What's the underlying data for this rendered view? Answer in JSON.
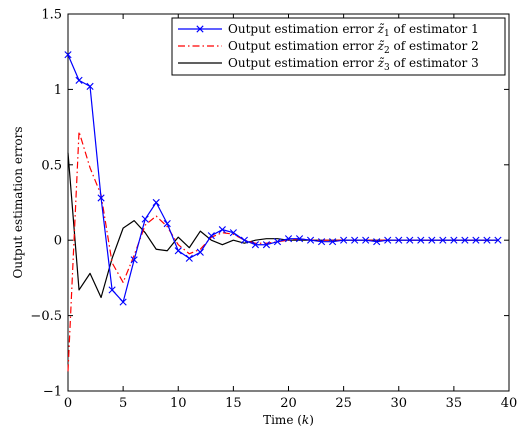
{
  "chart_data": {
    "type": "line",
    "title": "",
    "xlabel": "Time (k)",
    "ylabel": "Output estimation errors",
    "xlim": [
      0,
      40
    ],
    "ylim": [
      -1,
      1.5
    ],
    "xticks": [
      0,
      5,
      10,
      15,
      20,
      25,
      30,
      35,
      40
    ],
    "xtick_labels": [
      "0",
      "5",
      "10",
      "15",
      "20",
      "25",
      "30",
      "35",
      "40"
    ],
    "yticks": [
      -1,
      -0.5,
      0,
      0.5,
      1,
      1.5
    ],
    "ytick_labels": [
      "−1",
      "−0.5",
      "0",
      "0.5",
      "1",
      "1.5"
    ],
    "grid": false,
    "legend_position": "top-right",
    "x": [
      0,
      1,
      2,
      3,
      4,
      5,
      6,
      7,
      8,
      9,
      10,
      11,
      12,
      13,
      14,
      15,
      16,
      17,
      18,
      19,
      20,
      21,
      22,
      23,
      24,
      25,
      26,
      27,
      28,
      29,
      30,
      31,
      32,
      33,
      34,
      35,
      36,
      37,
      38,
      39
    ],
    "series": [
      {
        "name": "Output estimation error z̃₁ of estimator 1",
        "legend_prefix": "Output estimation error ",
        "legend_symbol": "z̃",
        "legend_sub": "1",
        "legend_suffix": " of estimator 1",
        "color": "#0000ff",
        "line_style": "solid",
        "marker": "x",
        "values": [
          1.23,
          1.06,
          1.02,
          0.28,
          -0.33,
          -0.41,
          -0.13,
          0.14,
          0.25,
          0.11,
          -0.07,
          -0.12,
          -0.08,
          0.03,
          0.07,
          0.05,
          0.0,
          -0.03,
          -0.03,
          -0.01,
          0.01,
          0.01,
          0.0,
          -0.01,
          -0.01,
          0.0,
          0.0,
          0.0,
          -0.01,
          0.0,
          0.0,
          0.0,
          0.0,
          0.0,
          0.0,
          0.0,
          0.0,
          0.0,
          0.0,
          0.0
        ]
      },
      {
        "name": "Output estimation error z̃₂ of estimator 2",
        "legend_prefix": "Output estimation error ",
        "legend_symbol": "z̃",
        "legend_sub": "2",
        "legend_suffix": " of estimator 2",
        "color": "#ff0000",
        "line_style": "dashdot",
        "marker": "none",
        "values": [
          -0.87,
          0.72,
          0.48,
          0.3,
          -0.15,
          -0.28,
          -0.1,
          0.1,
          0.16,
          0.09,
          -0.03,
          -0.09,
          -0.06,
          0.02,
          0.05,
          0.04,
          0.0,
          -0.02,
          -0.02,
          -0.01,
          0.0,
          0.01,
          0.0,
          0.0,
          0.0,
          0.0,
          0.0,
          0.0,
          0.0,
          0.0,
          0.0,
          0.0,
          0.0,
          0.0,
          0.0,
          0.0,
          0.0,
          0.0,
          0.0,
          0.0
        ]
      },
      {
        "name": "Output estimation error z̃₃ of estimator 3",
        "legend_prefix": "Output estimation error ",
        "legend_symbol": "z̃",
        "legend_sub": "3",
        "legend_suffix": " of estimator 3",
        "color": "#000000",
        "line_style": "solid",
        "marker": "none",
        "values": [
          0.58,
          -0.33,
          -0.22,
          -0.38,
          -0.12,
          0.08,
          0.13,
          0.05,
          -0.06,
          -0.07,
          0.02,
          -0.05,
          0.06,
          0.0,
          -0.03,
          0.0,
          -0.02,
          0.0,
          0.01,
          0.01,
          0.0,
          0.0,
          0.0,
          0.0,
          0.0,
          0.0,
          0.0,
          0.0,
          0.0,
          0.0,
          0.0,
          0.0,
          0.0,
          0.0,
          0.0,
          0.0,
          0.0,
          0.0,
          0.0,
          0.0
        ]
      }
    ]
  }
}
